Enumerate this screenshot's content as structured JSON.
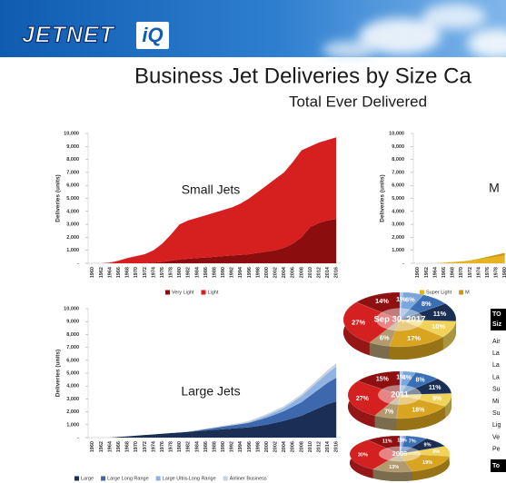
{
  "header": {
    "logo": "JETNET",
    "logo_badge": "iQ"
  },
  "title": "Business Jet Deliveries by Size Ca",
  "subtitle": "Total Ever Delivered",
  "chart_data": [
    {
      "type": "area",
      "title": "Small Jets",
      "y_label": "Deliveries (units)",
      "categories": [
        "1960",
        "1962",
        "1964",
        "1966",
        "1968",
        "1970",
        "1972",
        "1974",
        "1976",
        "1978",
        "1980",
        "1982",
        "1984",
        "1986",
        "1988",
        "1990",
        "1992",
        "1994",
        "1996",
        "1998",
        "2000",
        "2002",
        "2004",
        "2006",
        "2008",
        "2010",
        "2012",
        "2014",
        "2016"
      ],
      "series": [
        {
          "name": "Very Light",
          "color": "#8b0d0d",
          "values": [
            0,
            0,
            0,
            0,
            0,
            0,
            0,
            50,
            100,
            200,
            300,
            350,
            400,
            450,
            500,
            550,
            600,
            650,
            700,
            800,
            900,
            1000,
            1200,
            1500,
            2000,
            2800,
            3100,
            3300,
            3400
          ]
        },
        {
          "name": "Light",
          "color": "#d61f1f",
          "values": [
            0,
            0,
            50,
            200,
            400,
            550,
            700,
            950,
            1400,
            2000,
            2700,
            2950,
            3100,
            3250,
            3400,
            3550,
            3700,
            3950,
            4300,
            4700,
            5100,
            5500,
            5800,
            6300,
            6700,
            6200,
            6200,
            6200,
            6300
          ]
        }
      ],
      "ylim": [
        0,
        10000
      ],
      "yticks": [
        {
          "value": 0,
          "label": "-"
        },
        {
          "value": 1000,
          "label": "1,000"
        },
        {
          "value": 2000,
          "label": "2,000"
        },
        {
          "value": 3000,
          "label": "3,000"
        },
        {
          "value": 4000,
          "label": "4,000"
        },
        {
          "value": 5000,
          "label": "5,000"
        },
        {
          "value": 6000,
          "label": "6,000"
        },
        {
          "value": 7000,
          "label": "7,000"
        },
        {
          "value": 8000,
          "label": "8,000"
        },
        {
          "value": 9000,
          "label": "9,000"
        },
        {
          "value": 10000,
          "label": "10,000"
        }
      ]
    },
    {
      "type": "area",
      "title": "M",
      "y_label": "Deliveries (units)",
      "categories": [
        "1960",
        "1962",
        "1964",
        "1966",
        "1968",
        "1970",
        "1972",
        "1974",
        "1976",
        "1978",
        "1980"
      ],
      "series": [
        {
          "name": "Super Light",
          "color": "#e8b321",
          "values": [
            0,
            0,
            0,
            50,
            100,
            150,
            200,
            300,
            400,
            500,
            600
          ]
        },
        {
          "name": "M",
          "color": "#c99a10",
          "values": [
            0,
            0,
            0,
            0,
            0,
            0,
            20,
            50,
            100,
            150,
            200
          ]
        }
      ],
      "ylim": [
        0,
        10000
      ],
      "yticks": [
        {
          "value": 0,
          "label": "-"
        },
        {
          "value": 1000,
          "label": "1,000"
        },
        {
          "value": 2000,
          "label": "2,000"
        },
        {
          "value": 3000,
          "label": "3,000"
        },
        {
          "value": 4000,
          "label": "4,000"
        },
        {
          "value": 5000,
          "label": "5,000"
        },
        {
          "value": 6000,
          "label": "6,000"
        },
        {
          "value": 7000,
          "label": "7,000"
        },
        {
          "value": 8000,
          "label": "8,000"
        },
        {
          "value": 9000,
          "label": "9,000"
        },
        {
          "value": 10000,
          "label": "10,000"
        }
      ]
    },
    {
      "type": "area",
      "title": "Large Jets",
      "y_label": "Deliveries (units)",
      "categories": [
        "1960",
        "1962",
        "1964",
        "1966",
        "1968",
        "1970",
        "1972",
        "1974",
        "1976",
        "1978",
        "1980",
        "1982",
        "1984",
        "1986",
        "1988",
        "1990",
        "1992",
        "1994",
        "1996",
        "1998",
        "2000",
        "2002",
        "2004",
        "2006",
        "2008",
        "2010",
        "2012",
        "2014",
        "2016"
      ],
      "series": [
        {
          "name": "Large",
          "color": "#1b2f55",
          "values": [
            0,
            0,
            0,
            50,
            100,
            150,
            200,
            250,
            300,
            350,
            400,
            450,
            500,
            550,
            600,
            650,
            700,
            750,
            800,
            900,
            1000,
            1150,
            1300,
            1500,
            1700,
            2000,
            2300,
            2600,
            2800
          ]
        },
        {
          "name": "Large Long Range",
          "color": "#3d68ad",
          "values": [
            0,
            0,
            0,
            0,
            0,
            0,
            0,
            0,
            0,
            0,
            0,
            0,
            50,
            100,
            150,
            200,
            250,
            300,
            350,
            450,
            550,
            650,
            750,
            900,
            1050,
            1250,
            1450,
            1650,
            1850
          ]
        },
        {
          "name": "Large Ultra-Long Range",
          "color": "#8fb3e3",
          "values": [
            0,
            0,
            0,
            0,
            0,
            0,
            0,
            0,
            0,
            0,
            0,
            0,
            0,
            0,
            0,
            0,
            0,
            0,
            50,
            100,
            150,
            200,
            250,
            350,
            450,
            550,
            650,
            750,
            850
          ]
        },
        {
          "name": "Airliner Business",
          "color": "#c9d3df",
          "values": [
            0,
            0,
            0,
            0,
            0,
            0,
            0,
            0,
            0,
            20,
            25,
            30,
            40,
            50,
            60,
            70,
            80,
            90,
            100,
            110,
            120,
            130,
            140,
            150,
            170,
            190,
            210,
            230,
            260
          ]
        }
      ],
      "ylim": [
        0,
        10000
      ],
      "yticks": [
        {
          "value": 0,
          "label": "-"
        },
        {
          "value": 1000,
          "label": "1,000"
        },
        {
          "value": 2000,
          "label": "2,000"
        },
        {
          "value": 3000,
          "label": "3,000"
        },
        {
          "value": 4000,
          "label": "4,000"
        },
        {
          "value": 5000,
          "label": "5,000"
        },
        {
          "value": 6000,
          "label": "6,000"
        },
        {
          "value": 7000,
          "label": "7,000"
        },
        {
          "value": 8000,
          "label": "8,000"
        },
        {
          "value": 9000,
          "label": "9,000"
        },
        {
          "value": 10000,
          "label": "10,000"
        }
      ]
    },
    {
      "type": "pie",
      "title": "Sep 30, 2017",
      "values": [
        1,
        6,
        8,
        11,
        10,
        17,
        6,
        27,
        14
      ],
      "value_labels": [
        "1%",
        "6%",
        "8%",
        "11%",
        "10%",
        "17%",
        "6%",
        "27%",
        "14%"
      ],
      "colors": [
        "#a9c8ea",
        "#7aa6dc",
        "#3a6fb5",
        "#1b2f55",
        "#f2d35a",
        "#d9a520",
        "#b09a6e",
        "#d42020",
        "#8f1010"
      ]
    },
    {
      "type": "pie",
      "title": "2011",
      "values": [
        1,
        4,
        8,
        11,
        9,
        18,
        7,
        27,
        15
      ],
      "value_labels": [
        "1%",
        "4%",
        "8%",
        "11%",
        "9%",
        "18%",
        "7%",
        "27%",
        "15%"
      ],
      "colors": [
        "#a9c8ea",
        "#7aa6dc",
        "#3a6fb5",
        "#1b2f55",
        "#f2d35a",
        "#d9a520",
        "#b09a6e",
        "#d42020",
        "#8f1010"
      ]
    },
    {
      "type": "pie",
      "title": "2006",
      "values": [
        1,
        1,
        7,
        9,
        9,
        19,
        13,
        30,
        11
      ],
      "value_labels": [
        "1%",
        "1%",
        "7%",
        "9%",
        "9%",
        "19%",
        "13%",
        "30%",
        "11%"
      ],
      "colors": [
        "#a9c8ea",
        "#7aa6dc",
        "#3a6fb5",
        "#1b2f55",
        "#f2d35a",
        "#d9a520",
        "#b09a6e",
        "#d42020",
        "#8f1010"
      ]
    }
  ],
  "table": {
    "header": [
      "TO",
      "Siz"
    ],
    "rows": [
      "Air",
      "La",
      "La",
      "La",
      "Su",
      "Mi",
      "Su",
      "Lig",
      "Ve",
      "Pe"
    ],
    "total": "To"
  }
}
